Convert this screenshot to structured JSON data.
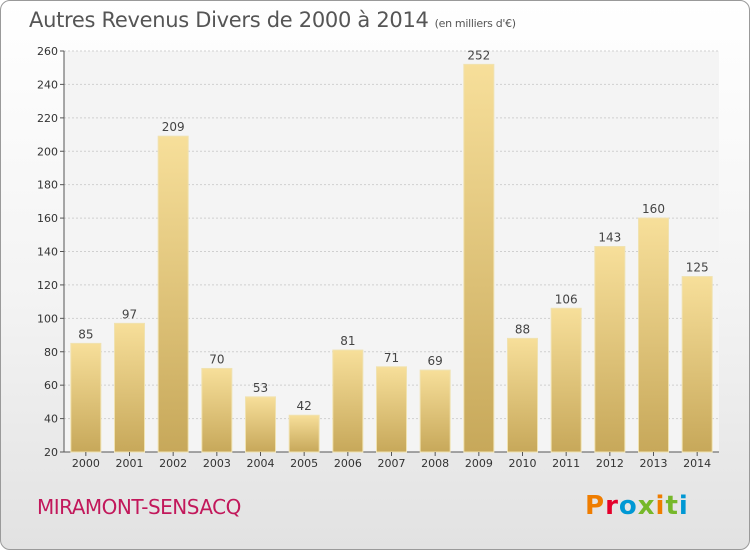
{
  "header": {
    "title": "Autres Revenus Divers de 2000 à 2014",
    "unit": "(en milliers d'€)"
  },
  "footer": {
    "commune": "MIRAMONT-SENSACQ",
    "logo": [
      "P",
      "r",
      "o",
      "x",
      "i",
      "t",
      "i"
    ]
  },
  "colors": {
    "bar_light": "#f7df9a",
    "bar_dark": "#c7a85a",
    "bar_stroke": "#f0e2b0",
    "grid": "#cfcfcf",
    "title": "#555555",
    "commune": "#c2185b"
  },
  "chart_data": {
    "type": "bar",
    "categories": [
      "2000",
      "2001",
      "2002",
      "2003",
      "2004",
      "2005",
      "2006",
      "2007",
      "2008",
      "2009",
      "2010",
      "2011",
      "2012",
      "2013",
      "2014"
    ],
    "values": [
      85,
      97,
      209,
      70,
      53,
      42,
      81,
      71,
      69,
      252,
      88,
      106,
      143,
      160,
      125
    ],
    "yticks": [
      20,
      40,
      60,
      80,
      100,
      120,
      140,
      160,
      180,
      200,
      220,
      240,
      260
    ],
    "ylim": [
      20,
      260
    ],
    "grid": true
  }
}
